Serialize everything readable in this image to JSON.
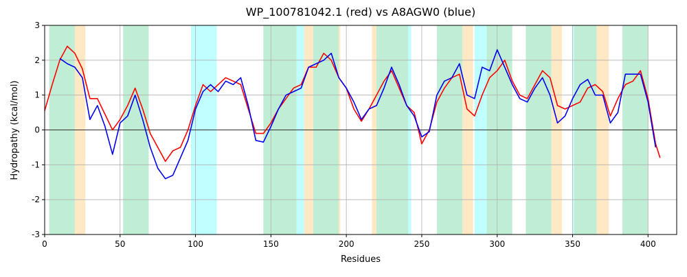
{
  "chart_data": {
    "type": "line",
    "title": "WP_100781042.1 (red) vs A8AGW0 (blue)",
    "xlabel": "Residues",
    "ylabel": "Hydropathy (kcal/mol)",
    "xlim": [
      0,
      419
    ],
    "ylim": [
      -3,
      3
    ],
    "xticks": [
      0,
      50,
      100,
      150,
      200,
      250,
      300,
      350,
      400
    ],
    "yticks": [
      -3,
      -2,
      -1,
      0,
      1,
      2,
      3
    ],
    "grid": true,
    "zero_line": true,
    "bands": [
      {
        "x": [
          3,
          20
        ],
        "color": "#c0eed4"
      },
      {
        "x": [
          20,
          27
        ],
        "color": "#ffe8c4"
      },
      {
        "x": [
          52,
          69
        ],
        "color": "#c0eed4"
      },
      {
        "x": [
          97,
          114
        ],
        "color": "#c0ffff"
      },
      {
        "x": [
          145,
          167
        ],
        "color": "#c0eed4"
      },
      {
        "x": [
          167,
          172
        ],
        "color": "#c0ffff"
      },
      {
        "x": [
          172,
          178
        ],
        "color": "#ffe8c4"
      },
      {
        "x": [
          178,
          195
        ],
        "color": "#c0eed4"
      },
      {
        "x": [
          195,
          196
        ],
        "color": "#ffe8c4"
      },
      {
        "x": [
          217,
          220
        ],
        "color": "#ffe8c4"
      },
      {
        "x": [
          220,
          241
        ],
        "color": "#c0eed4"
      },
      {
        "x": [
          241,
          243
        ],
        "color": "#c0ffff"
      },
      {
        "x": [
          260,
          277
        ],
        "color": "#c0eed4"
      },
      {
        "x": [
          277,
          284
        ],
        "color": "#ffe8c4"
      },
      {
        "x": [
          285,
          293
        ],
        "color": "#c0ffff"
      },
      {
        "x": [
          293,
          310
        ],
        "color": "#c0eed4"
      },
      {
        "x": [
          319,
          336
        ],
        "color": "#c0eed4"
      },
      {
        "x": [
          336,
          343
        ],
        "color": "#ffe8c4"
      },
      {
        "x": [
          350,
          351
        ],
        "color": "#c0ffff"
      },
      {
        "x": [
          351,
          366
        ],
        "color": "#c0eed4"
      },
      {
        "x": [
          366,
          374
        ],
        "color": "#ffe8c4"
      },
      {
        "x": [
          383,
          400
        ],
        "color": "#c0eed4"
      }
    ],
    "x": [
      0,
      5,
      10,
      15,
      20,
      25,
      30,
      35,
      40,
      45,
      50,
      55,
      60,
      65,
      70,
      75,
      80,
      85,
      90,
      95,
      100,
      105,
      110,
      115,
      120,
      125,
      130,
      135,
      140,
      145,
      150,
      155,
      160,
      165,
      170,
      175,
      180,
      185,
      190,
      195,
      200,
      205,
      210,
      215,
      220,
      225,
      230,
      235,
      240,
      245,
      250,
      255,
      260,
      265,
      270,
      275,
      280,
      285,
      290,
      295,
      300,
      305,
      310,
      315,
      320,
      325,
      330,
      335,
      340,
      345,
      350,
      355,
      360,
      365,
      370,
      375,
      380,
      385,
      390,
      395,
      400,
      405,
      408
    ],
    "series": [
      {
        "name": "WP_100781042.1",
        "color": "#ff0000",
        "values": [
          0.55,
          1.3,
          2.0,
          2.4,
          2.2,
          1.75,
          0.9,
          0.9,
          0.45,
          0.0,
          0.3,
          0.7,
          1.2,
          0.6,
          -0.1,
          -0.5,
          -0.9,
          -0.6,
          -0.5,
          0.0,
          0.7,
          1.3,
          1.1,
          1.3,
          1.5,
          1.4,
          1.3,
          0.6,
          -0.1,
          -0.1,
          0.2,
          0.6,
          0.9,
          1.2,
          1.3,
          1.8,
          1.8,
          2.2,
          2.0,
          1.5,
          1.2,
          0.6,
          0.25,
          0.6,
          1.0,
          1.4,
          1.7,
          1.2,
          0.7,
          0.5,
          -0.4,
          0.0,
          0.8,
          1.2,
          1.5,
          1.6,
          0.6,
          0.4,
          1.0,
          1.5,
          1.7,
          2.0,
          1.4,
          1.0,
          0.9,
          1.3,
          1.7,
          1.5,
          0.7,
          0.6,
          0.7,
          0.8,
          1.2,
          1.3,
          1.1,
          0.4,
          0.9,
          1.3,
          1.4,
          1.7,
          0.9,
          -0.4,
          -0.8
        ]
      },
      {
        "name": "A8AGW0",
        "color": "#0000ee",
        "values": [
          null,
          null,
          2.05,
          1.9,
          1.8,
          1.5,
          0.3,
          0.7,
          0.1,
          -0.7,
          0.2,
          0.4,
          1.0,
          0.3,
          -0.5,
          -1.1,
          -1.4,
          -1.3,
          -0.8,
          -0.3,
          0.6,
          1.1,
          1.3,
          1.1,
          1.4,
          1.3,
          1.5,
          0.7,
          -0.3,
          -0.35,
          0.1,
          0.6,
          1.0,
          1.1,
          1.2,
          1.8,
          1.9,
          2.0,
          2.2,
          1.5,
          1.2,
          0.8,
          0.3,
          0.6,
          0.7,
          1.2,
          1.8,
          1.3,
          0.7,
          0.4,
          -0.2,
          -0.05,
          1.0,
          1.4,
          1.5,
          1.9,
          1.0,
          0.9,
          1.8,
          1.7,
          2.3,
          1.8,
          1.3,
          0.9,
          0.8,
          1.2,
          1.5,
          1.0,
          0.2,
          0.4,
          0.9,
          1.3,
          1.45,
          1.0,
          1.0,
          0.2,
          0.5,
          1.6,
          1.6,
          1.6,
          0.8,
          -0.5,
          null
        ]
      }
    ]
  }
}
